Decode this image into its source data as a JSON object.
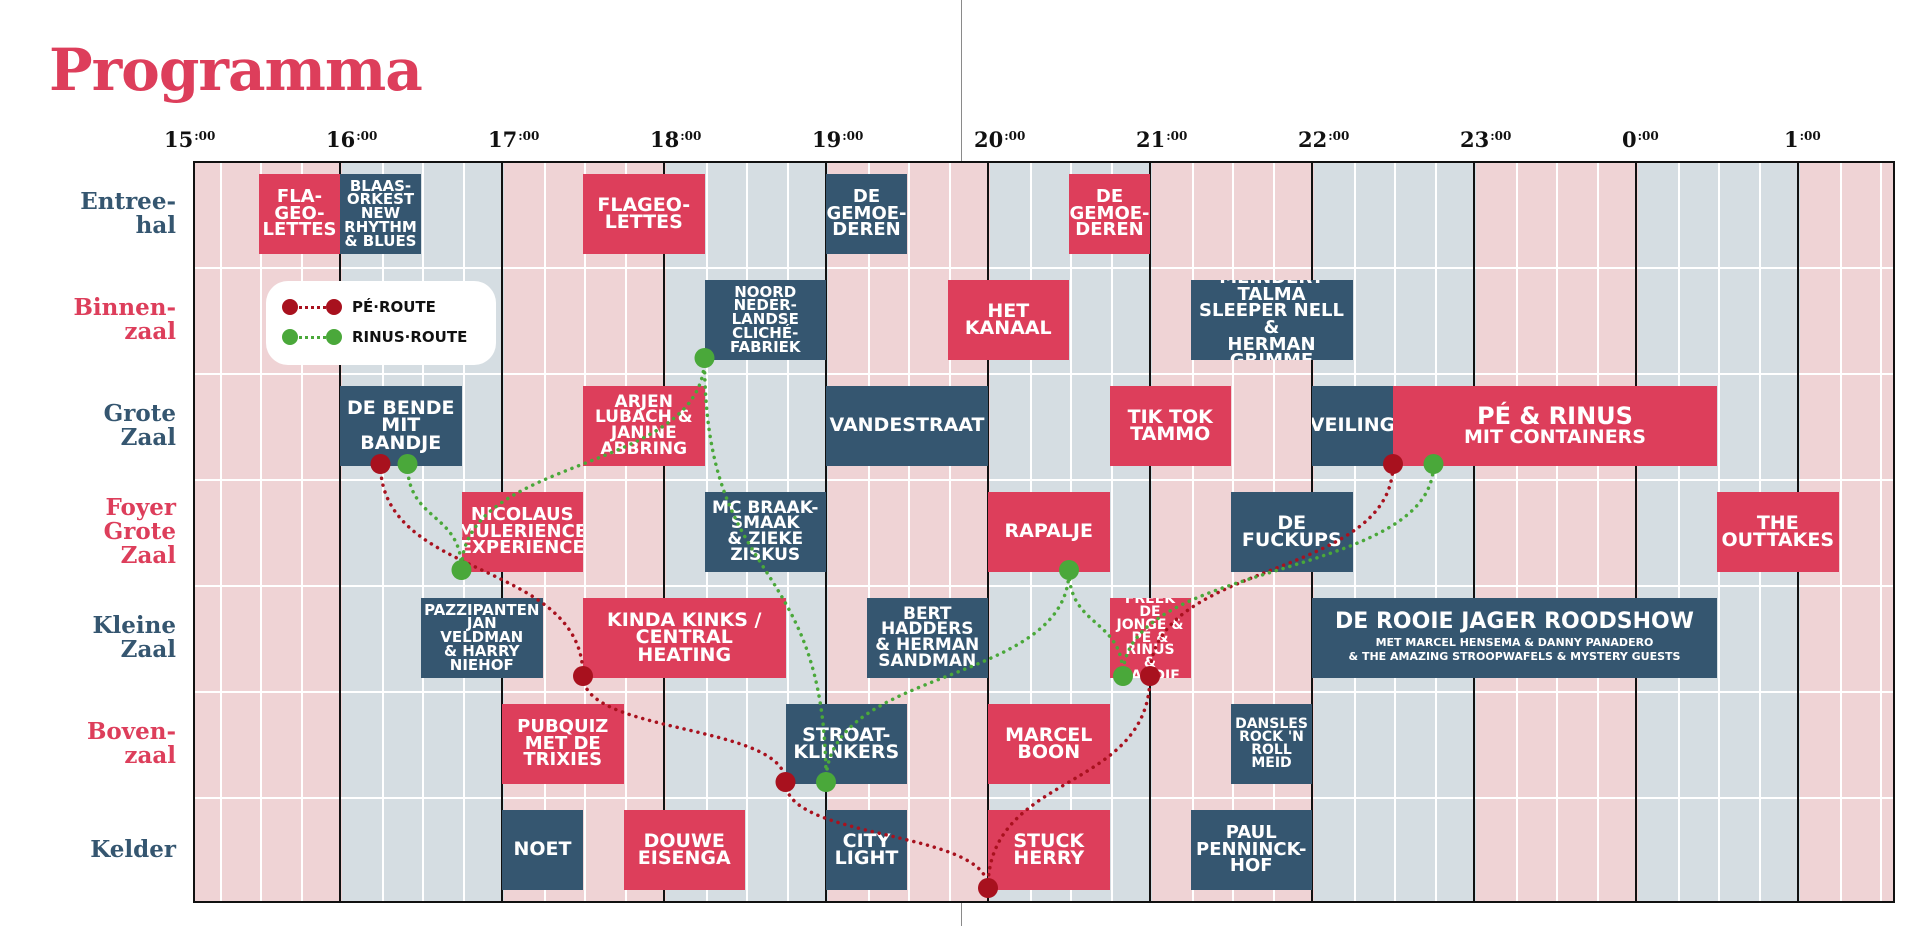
{
  "title": "Programma",
  "colors": {
    "red": "#dd3e5b",
    "blue": "#355670",
    "route_pe": "#a8111e",
    "route_rinus": "#4aa83a",
    "band_pink": "#efd3d5",
    "band_grey": "#d5dde2"
  },
  "hours": [
    {
      "h": "15",
      "m": ":00"
    },
    {
      "h": "16",
      "m": ":00"
    },
    {
      "h": "17",
      "m": ":00"
    },
    {
      "h": "18",
      "m": ":00"
    },
    {
      "h": "19",
      "m": ":00"
    },
    {
      "h": "20",
      "m": ":00"
    },
    {
      "h": "21",
      "m": ":00"
    },
    {
      "h": "22",
      "m": ":00"
    },
    {
      "h": "23",
      "m": ":00"
    },
    {
      "h": "0",
      "m": ":00"
    },
    {
      "h": "1",
      "m": ":00"
    }
  ],
  "rooms": [
    {
      "name": "Entree-\nhal",
      "color": "blue"
    },
    {
      "name": "Binnen-\nzaal",
      "color": "red"
    },
    {
      "name": "Grote\nZaal",
      "color": "blue"
    },
    {
      "name": "Foyer\nGrote\nZaal",
      "color": "red"
    },
    {
      "name": "Kleine\nZaal",
      "color": "blue"
    },
    {
      "name": "Boven-\nzaal",
      "color": "red"
    },
    {
      "name": "Kelder",
      "color": "blue"
    }
  ],
  "acts": [
    {
      "room": 0,
      "start": "15:30",
      "end": "16:00",
      "color": "red",
      "lines": [
        "FLA-",
        "GEO-",
        "LETTES"
      ]
    },
    {
      "room": 0,
      "start": "16:00",
      "end": "16:30",
      "color": "blue",
      "lines": [
        "BLAAS-",
        "ORKEST",
        "NEW",
        "RHYTHM",
        "& BLUES"
      ]
    },
    {
      "room": 0,
      "start": "17:30",
      "end": "18:15",
      "color": "red",
      "lines": [
        "FLAGEO-",
        "LETTES"
      ]
    },
    {
      "room": 0,
      "start": "19:00",
      "end": "19:30",
      "color": "blue",
      "lines": [
        "DE",
        "GEMOE-",
        "DEREN"
      ]
    },
    {
      "room": 0,
      "start": "20:30",
      "end": "21:00",
      "color": "red",
      "lines": [
        "DE",
        "GEMOE-",
        "DEREN"
      ]
    },
    {
      "room": 1,
      "start": "18:15",
      "end": "19:00",
      "color": "blue",
      "lines": [
        "NOORD",
        "NEDER-",
        "LANDSE",
        "CLICHÉ-",
        "FABRIEK"
      ]
    },
    {
      "room": 1,
      "start": "19:45",
      "end": "20:30",
      "color": "red",
      "lines": [
        "HET",
        "KANAAL"
      ]
    },
    {
      "room": 1,
      "start": "21:15",
      "end": "22:15",
      "color": "blue",
      "lines": [
        "MEINDERT TALMA",
        "SLEEPER NELL &",
        "HERMAN GRIMME"
      ]
    },
    {
      "room": 2,
      "start": "16:00",
      "end": "16:45",
      "color": "blue",
      "lines": [
        "DE BENDE",
        "MIT BANDJE"
      ]
    },
    {
      "room": 2,
      "start": "17:30",
      "end": "18:15",
      "color": "red",
      "lines": [
        "ARJEN",
        "LUBACH &",
        "JANINE",
        "ABBRING"
      ]
    },
    {
      "room": 2,
      "start": "19:00",
      "end": "20:00",
      "color": "blue",
      "lines": [
        "VANDESTRAAT"
      ]
    },
    {
      "room": 2,
      "start": "20:45",
      "end": "21:30",
      "color": "red",
      "lines": [
        "TIK TOK",
        "TAMMO"
      ]
    },
    {
      "room": 2,
      "start": "22:00",
      "end": "22:30",
      "color": "blue",
      "lines": [
        "VEILING"
      ]
    },
    {
      "room": 2,
      "start": "22:30",
      "end": "0:30",
      "color": "red",
      "lines": [
        "PÉ & RINUS",
        "MIT CONTAINERS"
      ],
      "big": true
    },
    {
      "room": 3,
      "start": "16:45",
      "end": "17:30",
      "color": "red",
      "lines": [
        "NICOLAUS",
        "MULERIENCE",
        "EXPERIENCE"
      ]
    },
    {
      "room": 3,
      "start": "18:15",
      "end": "19:00",
      "color": "blue",
      "lines": [
        "MC BRAAK-",
        "SMAAK",
        "& ZIEKE",
        "ZISKUS"
      ]
    },
    {
      "room": 3,
      "start": "20:00",
      "end": "20:45",
      "color": "red",
      "lines": [
        "RAPALJE"
      ]
    },
    {
      "room": 3,
      "start": "21:30",
      "end": "22:15",
      "color": "blue",
      "lines": [
        "DE",
        "FUCKUPS"
      ]
    },
    {
      "room": 3,
      "start": "0:30",
      "end": "1:15",
      "color": "red",
      "lines": [
        "THE",
        "OUTTAKES"
      ]
    },
    {
      "room": 4,
      "start": "16:30",
      "end": "17:15",
      "color": "blue",
      "lines": [
        "PAZZIPANTEN",
        "JAN",
        "VELDMAN",
        "& HARRY",
        "NIEHOF"
      ]
    },
    {
      "room": 4,
      "start": "17:30",
      "end": "18:45",
      "color": "red",
      "lines": [
        "KINDA KINKS /",
        "CENTRAL HEATING"
      ]
    },
    {
      "room": 4,
      "start": "19:15",
      "end": "20:00",
      "color": "blue",
      "lines": [
        "BERT",
        "HADDERS",
        "& HERMAN",
        "SANDMAN"
      ]
    },
    {
      "room": 4,
      "start": "20:45",
      "end": "21:15",
      "color": "red",
      "lines": [
        "FREEK DE",
        "JONGE &",
        "PÉ & RINUS",
        "& BANDJE"
      ],
      "small": true
    },
    {
      "room": 4,
      "start": "22:00",
      "end": "0:30",
      "color": "blue",
      "lines": [
        "DE ROOIE JAGER ROODSHOW"
      ],
      "sub": [
        "MET MARCEL HENSEMA & DANNY PANADERO",
        "& THE AMAZING STROOPWAFELS & MYSTERY GUESTS"
      ]
    },
    {
      "room": 5,
      "start": "17:00",
      "end": "17:45",
      "color": "red",
      "lines": [
        "PUBQUIZ",
        "MET DE",
        "TRIXIES"
      ]
    },
    {
      "room": 5,
      "start": "18:45",
      "end": "19:30",
      "color": "blue",
      "lines": [
        "STROAT-",
        "KLINKERS"
      ]
    },
    {
      "room": 5,
      "start": "20:00",
      "end": "20:45",
      "color": "red",
      "lines": [
        "MARCEL",
        "BOON"
      ]
    },
    {
      "room": 5,
      "start": "21:30",
      "end": "22:00",
      "color": "blue",
      "lines": [
        "DANSLES",
        "ROCK 'N",
        "ROLL",
        "MEID"
      ],
      "small": true
    },
    {
      "room": 6,
      "start": "17:00",
      "end": "17:30",
      "color": "blue",
      "lines": [
        "NOET"
      ]
    },
    {
      "room": 6,
      "start": "17:45",
      "end": "18:30",
      "color": "red",
      "lines": [
        "DOUWE",
        "EISENGA"
      ]
    },
    {
      "room": 6,
      "start": "19:00",
      "end": "19:30",
      "color": "blue",
      "lines": [
        "CITY",
        "LIGHT"
      ]
    },
    {
      "room": 6,
      "start": "20:00",
      "end": "20:45",
      "color": "red",
      "lines": [
        "STUCK",
        "HERRY"
      ]
    },
    {
      "room": 6,
      "start": "21:15",
      "end": "22:00",
      "color": "blue",
      "lines": [
        "PAUL",
        "PENNINCK-",
        "HOF"
      ]
    }
  ],
  "legend": [
    {
      "label": "PÉ·ROUTE",
      "color": "route_pe"
    },
    {
      "label": "RINUS·ROUTE",
      "color": "route_rinus"
    }
  ],
  "routes": {
    "pe": [
      {
        "room": 2,
        "time": "16:15"
      },
      {
        "room": 4,
        "time": "17:30"
      },
      {
        "room": 5,
        "time": "18:45"
      },
      {
        "room": 6,
        "time": "20:00"
      },
      {
        "room": 4,
        "time": "21:00"
      },
      {
        "room": 2,
        "time": "22:30"
      }
    ],
    "rinus": [
      {
        "room": 2,
        "time": "16:25"
      },
      {
        "room": 3,
        "time": "16:45"
      },
      {
        "room": 1,
        "time": "18:15"
      },
      {
        "room": 5,
        "time": "19:00"
      },
      {
        "room": 3,
        "time": "20:30"
      },
      {
        "room": 4,
        "time": "20:50"
      },
      {
        "room": 2,
        "time": "22:45"
      }
    ]
  }
}
